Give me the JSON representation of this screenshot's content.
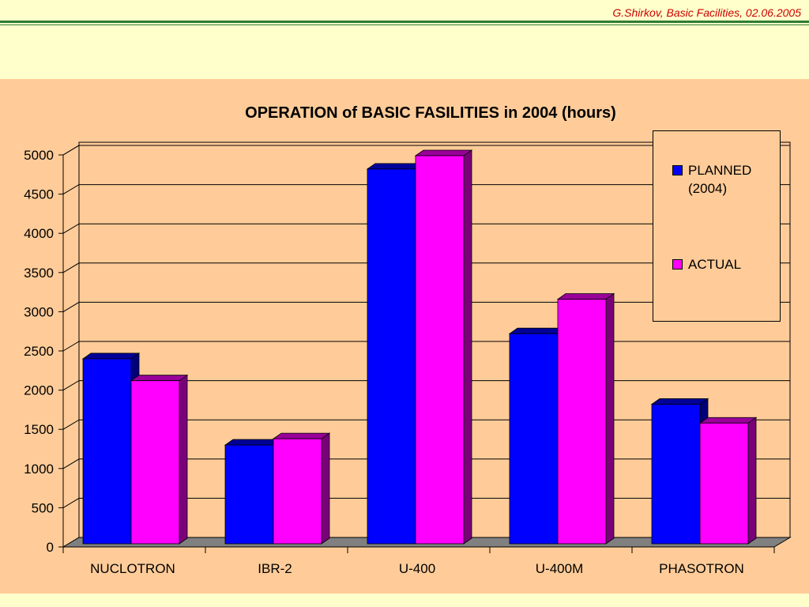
{
  "header": {
    "text": "G.Shirkov, Basic Facilities,  02.06.2005"
  },
  "chart_data": {
    "type": "bar",
    "title": "OPERATION of BASIC FASILITIES in 2004 (hours)",
    "categories": [
      "NUCLOTRON",
      "IBR-2",
      "U-400",
      "U-400M",
      "PHASOTRON"
    ],
    "series": [
      {
        "name": "PLANNED (2004)",
        "values": [
          2400,
          1300,
          4820,
          2720,
          1820
        ],
        "color": "#0000ff"
      },
      {
        "name": "ACTUAL",
        "values": [
          2120,
          1380,
          4990,
          3160,
          1580
        ],
        "color": "#ff00ff"
      }
    ],
    "ylim": [
      0,
      5000
    ],
    "yticks": [
      "0",
      "500",
      "1000",
      "1500",
      "2000",
      "2500",
      "3000",
      "3500",
      "4000",
      "4500",
      "5000"
    ],
    "grid": true,
    "legend_position": "top-right",
    "colors": {
      "page_background": "#ffffcc",
      "chart_background": "#ffcc99",
      "floor": "#808080",
      "planned_top": "#000099",
      "actual_top": "#990099",
      "header_text": "#cc0000",
      "rule": "#2e7d32"
    }
  },
  "legend": {
    "planned_line1": "PLANNED",
    "planned_line2": "(2004)",
    "actual": "ACTUAL"
  }
}
